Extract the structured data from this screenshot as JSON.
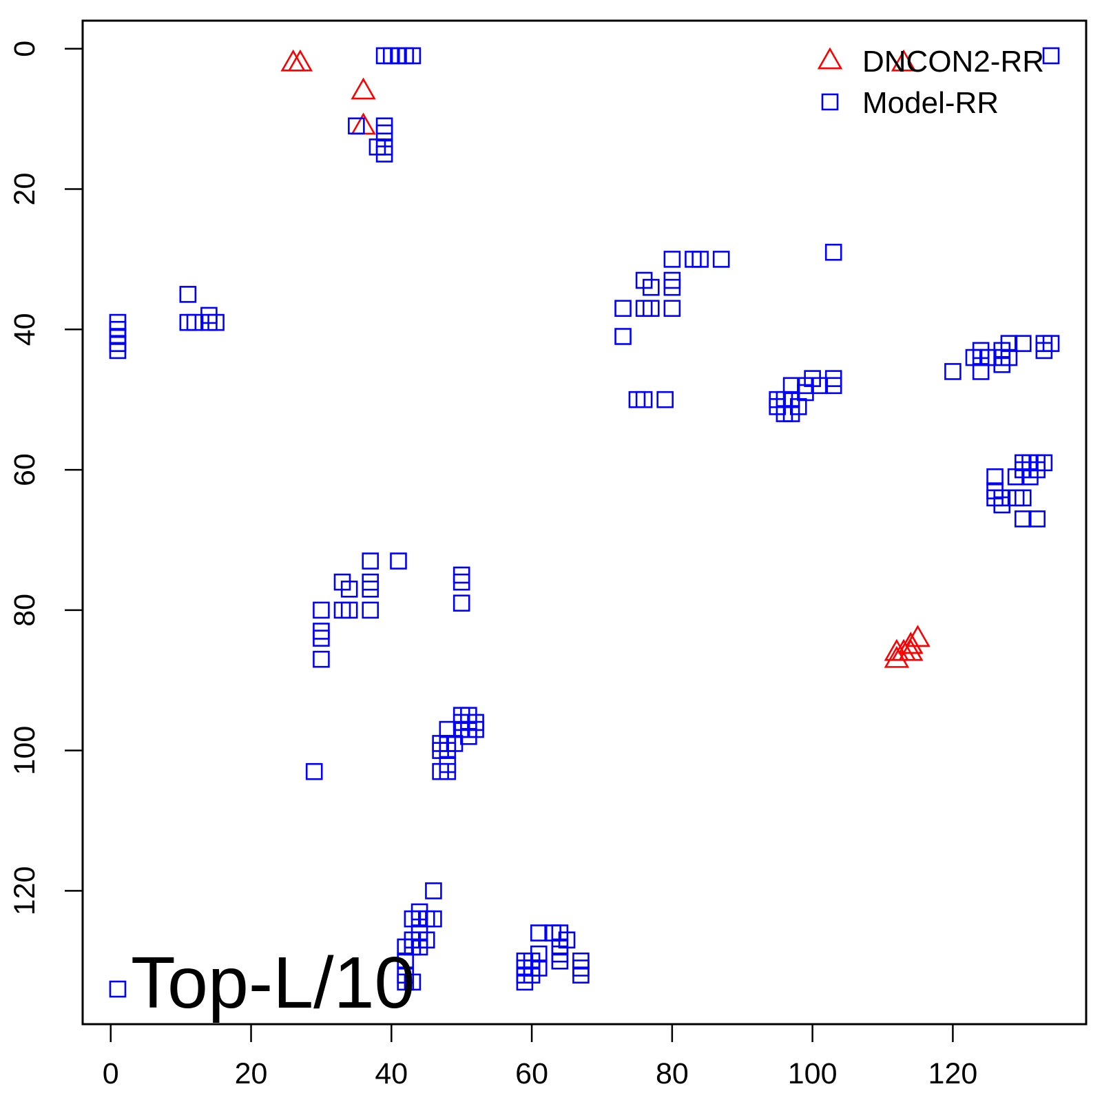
{
  "chart_data": {
    "type": "scatter",
    "title": "",
    "xlabel": "",
    "ylabel": "",
    "xlim": [
      -4,
      139
    ],
    "ylim": [
      139,
      -4
    ],
    "y_reversed": true,
    "xticks": [
      0,
      20,
      40,
      60,
      80,
      100,
      120
    ],
    "xtick_labels": [
      "0",
      "20",
      "40",
      "60",
      "80",
      "100",
      "120"
    ],
    "yticks": [
      0,
      20,
      40,
      60,
      80,
      100,
      120
    ],
    "ytick_labels": [
      "0",
      "20",
      "40",
      "60",
      "80",
      "100",
      "120"
    ],
    "grid": false,
    "legend_position": "top-right",
    "annotation": "Top-L/10",
    "series": [
      {
        "name": "DNCON2-RR",
        "marker": "triangle",
        "color": "#ff0000",
        "points": [
          [
            26,
            2
          ],
          [
            27,
            2
          ],
          [
            36,
            6
          ],
          [
            36,
            11
          ],
          [
            113,
            2
          ],
          [
            112,
            86
          ],
          [
            112,
            87
          ],
          [
            113,
            86
          ],
          [
            114,
            85
          ],
          [
            114,
            86
          ],
          [
            115,
            84
          ],
          [
            114,
            85
          ]
        ]
      },
      {
        "name": "Model-RR",
        "marker": "square",
        "color": "#0000ff",
        "points": [
          [
            39,
            1
          ],
          [
            40,
            1
          ],
          [
            41,
            1
          ],
          [
            42,
            1
          ],
          [
            43,
            1
          ],
          [
            134,
            1
          ],
          [
            35,
            11
          ],
          [
            39,
            11
          ],
          [
            39,
            12
          ],
          [
            38,
            14
          ],
          [
            39,
            14
          ],
          [
            39,
            15
          ],
          [
            1,
            39
          ],
          [
            1,
            40
          ],
          [
            1,
            41
          ],
          [
            1,
            42
          ],
          [
            1,
            43
          ],
          [
            11,
            35
          ],
          [
            11,
            39
          ],
          [
            12,
            39
          ],
          [
            14,
            38
          ],
          [
            14,
            39
          ],
          [
            15,
            39
          ],
          [
            80,
            30
          ],
          [
            83,
            30
          ],
          [
            84,
            30
          ],
          [
            87,
            30
          ],
          [
            103,
            29
          ],
          [
            76,
            33
          ],
          [
            77,
            34
          ],
          [
            80,
            33
          ],
          [
            80,
            34
          ],
          [
            73,
            37
          ],
          [
            76,
            37
          ],
          [
            77,
            37
          ],
          [
            80,
            37
          ],
          [
            73,
            41
          ],
          [
            75,
            50
          ],
          [
            76,
            50
          ],
          [
            79,
            50
          ],
          [
            95,
            50
          ],
          [
            96,
            50
          ],
          [
            97,
            50
          ],
          [
            98,
            51
          ],
          [
            95,
            51
          ],
          [
            96,
            52
          ],
          [
            97,
            52
          ],
          [
            97,
            48
          ],
          [
            99,
            48
          ],
          [
            100,
            47
          ],
          [
            99,
            49
          ],
          [
            103,
            47
          ],
          [
            103,
            48
          ],
          [
            101,
            48
          ],
          [
            120,
            46
          ],
          [
            123,
            44
          ],
          [
            124,
            43
          ],
          [
            124,
            44
          ],
          [
            124,
            46
          ],
          [
            125,
            44
          ],
          [
            127,
            43
          ],
          [
            127,
            44
          ],
          [
            127,
            45
          ],
          [
            128,
            42
          ],
          [
            128,
            44
          ],
          [
            130,
            42
          ],
          [
            133,
            42
          ],
          [
            133,
            43
          ],
          [
            134,
            42
          ],
          [
            126,
            61
          ],
          [
            126,
            63
          ],
          [
            126,
            64
          ],
          [
            127,
            64
          ],
          [
            127,
            65
          ],
          [
            129,
            61
          ],
          [
            129,
            64
          ],
          [
            130,
            59
          ],
          [
            130,
            60
          ],
          [
            130,
            64
          ],
          [
            131,
            59
          ],
          [
            131,
            61
          ],
          [
            132,
            59
          ],
          [
            132,
            60
          ],
          [
            133,
            59
          ],
          [
            130,
            67
          ],
          [
            132,
            67
          ],
          [
            37,
            73
          ],
          [
            41,
            73
          ],
          [
            33,
            76
          ],
          [
            34,
            77
          ],
          [
            37,
            76
          ],
          [
            37,
            77
          ],
          [
            33,
            80
          ],
          [
            34,
            80
          ],
          [
            37,
            80
          ],
          [
            30,
            80
          ],
          [
            30,
            83
          ],
          [
            30,
            84
          ],
          [
            30,
            87
          ],
          [
            50,
            75
          ],
          [
            50,
            76
          ],
          [
            50,
            79
          ],
          [
            29,
            103
          ],
          [
            48,
            97
          ],
          [
            47,
            99
          ],
          [
            47,
            100
          ],
          [
            48,
            99
          ],
          [
            48,
            100
          ],
          [
            49,
            99
          ],
          [
            47,
            103
          ],
          [
            48,
            103
          ],
          [
            48,
            102
          ],
          [
            50,
            95
          ],
          [
            51,
            95
          ],
          [
            50,
            97
          ],
          [
            51,
            97
          ],
          [
            51,
            98
          ],
          [
            52,
            96
          ],
          [
            52,
            97
          ],
          [
            50,
            96
          ],
          [
            46,
            120
          ],
          [
            44,
            123
          ],
          [
            43,
            124
          ],
          [
            44,
            124
          ],
          [
            45,
            124
          ],
          [
            46,
            124
          ],
          [
            44,
            126
          ],
          [
            43,
            127
          ],
          [
            44,
            127
          ],
          [
            45,
            127
          ],
          [
            44,
            128
          ],
          [
            43,
            128
          ],
          [
            42,
            128
          ],
          [
            42,
            130
          ],
          [
            42,
            132
          ],
          [
            42,
            133
          ],
          [
            43,
            133
          ],
          [
            61,
            126
          ],
          [
            63,
            126
          ],
          [
            64,
            126
          ],
          [
            65,
            127
          ],
          [
            64,
            128
          ],
          [
            64,
            129
          ],
          [
            64,
            130
          ],
          [
            61,
            129
          ],
          [
            60,
            130
          ],
          [
            61,
            131
          ],
          [
            60,
            132
          ],
          [
            59,
            130
          ],
          [
            59,
            131
          ],
          [
            59,
            132
          ],
          [
            59,
            133
          ],
          [
            60,
            131
          ],
          [
            67,
            130
          ],
          [
            67,
            131
          ],
          [
            67,
            132
          ],
          [
            1,
            134
          ]
        ]
      }
    ]
  }
}
